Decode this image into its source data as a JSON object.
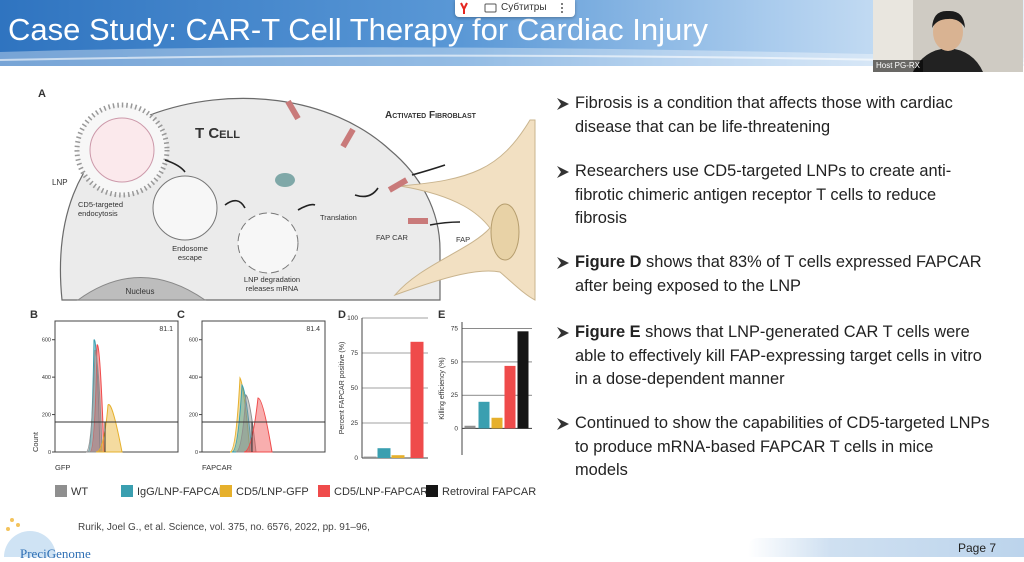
{
  "toolbar": {
    "subtitles": "Субтитры"
  },
  "video": {
    "host_label": "Host PG-RX"
  },
  "slide": {
    "title": "Case Study: CAR-T Cell Therapy for Cardiac Injury",
    "bullets": [
      {
        "text": "Fibrosis is a condition that affects those with cardiac disease that can be life-threatening"
      },
      {
        "text": "Researchers use CD5-targeted LNPs to create anti-fibrotic chimeric antigen receptor T cells to reduce fibrosis"
      },
      {
        "bold": "Figure D",
        "text": " shows that 83% of T cells expressed FAPCAR after being exposed to the LNP"
      },
      {
        "bold": "Figure E",
        "text": " shows that LNP-generated CAR T cells were able to effectively kill FAP-expressing target cells in vitro in a dose-dependent manner"
      },
      {
        "text": "Continued to show the capabilities of CD5-targeted LNPs to produce mRNA-based FAPCAR T cells in mice models"
      }
    ],
    "citation": "Rurik, Joel G., et al. Science, vol. 375, no. 6576, 2022, pp. 91–96,",
    "page_number": "Page 7",
    "logo": "PreciGenome"
  },
  "figure": {
    "panel_a": {
      "label": "A",
      "labels": {
        "t_cell": [
          "T Cell"
        ],
        "fibroblast": [
          "Activated Fibroblast"
        ],
        "lnp": [
          "LNP"
        ],
        "endocytosis": [
          "CD5-targeted",
          "endocytosis"
        ],
        "endosome": [
          "Endosome",
          "escape"
        ],
        "translation": [
          "Translation"
        ],
        "degradation": [
          "LNP degradation",
          "releases mRNA"
        ],
        "fap_car": [
          "FAP CAR"
        ],
        "fap": [
          "FAP"
        ],
        "nucleus": [
          "Nucleus"
        ]
      }
    },
    "panel_b": {
      "label": "B",
      "gate": "81.1",
      "x_label": "GFP",
      "y_label": "Count",
      "ylim": [
        0,
        700
      ],
      "yticks": [
        0,
        200,
        400,
        600
      ]
    },
    "panel_c": {
      "label": "C",
      "gate": "81.4",
      "x_label": "FAPCAR",
      "ylim": [
        0,
        700
      ],
      "yticks": [
        0,
        200,
        400,
        600
      ]
    },
    "panel_d": {
      "type": "bar",
      "label": "D",
      "y_label": "Percent FAPCAR positive (%)",
      "ylim": [
        0,
        100
      ],
      "yticks": [
        0,
        25,
        50,
        75,
        100
      ],
      "grid": true,
      "values": [
        1,
        7,
        2,
        83
      ],
      "colors": [
        "#8f8f8f",
        "#3a9fb0",
        "#e6b02c",
        "#ef4b4b"
      ]
    },
    "panel_e": {
      "type": "bar",
      "label": "E",
      "y_label": "Killing efficiency (%)",
      "ylim": [
        -20,
        80
      ],
      "yticks": [
        0,
        25,
        50,
        75
      ],
      "grid": true,
      "values": [
        2,
        20,
        8,
        47,
        73
      ],
      "colors": [
        "#8f8f8f",
        "#3a9fb0",
        "#e6b02c",
        "#ef4b4b",
        "#151515"
      ]
    },
    "legend": [
      {
        "name": "WT",
        "color": "#8f8f8f"
      },
      {
        "name": "IgG/LNP-FAPCAR",
        "color": "#3a9fb0"
      },
      {
        "name": "CD5/LNP-GFP",
        "color": "#e6b02c"
      },
      {
        "name": "CD5/LNP-FAPCAR",
        "color": "#ef4b4b"
      },
      {
        "name": "Retroviral FAPCAR",
        "color": "#151515"
      }
    ]
  }
}
